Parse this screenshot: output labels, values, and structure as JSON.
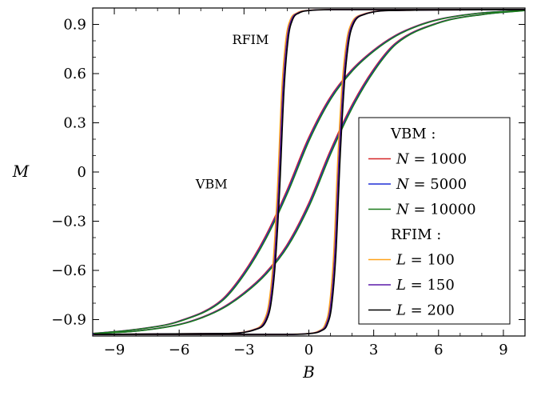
{
  "chart_data": {
    "type": "line",
    "xlabel": "B",
    "ylabel": "M",
    "xlim": [
      -10,
      10
    ],
    "ylim": [
      -1,
      1
    ],
    "xticks": [
      -9,
      -6,
      -3,
      0,
      3,
      6,
      9
    ],
    "xtick_labels": [
      "−9",
      "−6",
      "−3",
      "0",
      "3",
      "6",
      "9"
    ],
    "yticks": [
      -0.9,
      -0.6,
      -0.3,
      0,
      0.3,
      0.6,
      0.9
    ],
    "ytick_labels": [
      "−0.9",
      "−0.6",
      "−0.3",
      "0",
      "0.3",
      "0.6",
      "0.9"
    ],
    "grid": false,
    "legend_placement": "right",
    "annotations": [
      {
        "text": "RFIM",
        "x": -2.7,
        "y": 0.78
      },
      {
        "text": "VBM",
        "x": -4.5,
        "y": -0.1
      }
    ],
    "legend": {
      "groups": [
        {
          "title": "VBM :",
          "entries": [
            {
              "label": "N = 1000",
              "var": "N",
              "value": "1000",
              "color": "#d62728"
            },
            {
              "label": "N = 5000",
              "var": "N",
              "value": "5000",
              "color": "#1f2fd6"
            },
            {
              "label": "N = 10000",
              "var": "N",
              "value": "10000",
              "color": "#1a7a1a"
            }
          ]
        },
        {
          "title": "RFIM :",
          "entries": [
            {
              "label": "L = 100",
              "var": "L",
              "value": "100",
              "color": "#ffa31a"
            },
            {
              "label": "L = 150",
              "var": "L",
              "value": "150",
              "color": "#5b1aa8"
            },
            {
              "label": "L = 200",
              "var": "L",
              "value": "200",
              "color": "#000000"
            }
          ]
        }
      ]
    },
    "series": [
      {
        "name": "N = 1000",
        "group": "VBM",
        "color": "#d62728",
        "upper_branch": {
          "x": [
            -10,
            -8,
            -6,
            -4,
            -3,
            -2,
            -1,
            0,
            1,
            2,
            3,
            4,
            5,
            6,
            8,
            10
          ],
          "y": [
            -0.985,
            -0.96,
            -0.91,
            -0.78,
            -0.62,
            -0.4,
            -0.12,
            0.2,
            0.45,
            0.62,
            0.74,
            0.83,
            0.89,
            0.93,
            0.97,
            0.985
          ]
        },
        "lower_branch": {
          "x": [
            -10,
            -8,
            -6,
            -5,
            -4,
            -3,
            -2,
            -1,
            0,
            1,
            2,
            3,
            4,
            6,
            8,
            10
          ],
          "y": [
            -0.985,
            -0.97,
            -0.93,
            -0.89,
            -0.83,
            -0.74,
            -0.62,
            -0.45,
            -0.2,
            0.12,
            0.4,
            0.62,
            0.78,
            0.91,
            0.96,
            0.985
          ]
        }
      },
      {
        "name": "N = 5000",
        "group": "VBM",
        "color": "#1f2fd6",
        "upper_branch": {
          "x": [
            -10,
            -8,
            -6,
            -4,
            -3,
            -2,
            -1,
            0,
            1,
            2,
            3,
            4,
            5,
            6,
            8,
            10
          ],
          "y": [
            -0.985,
            -0.96,
            -0.91,
            -0.78,
            -0.62,
            -0.4,
            -0.12,
            0.2,
            0.45,
            0.62,
            0.74,
            0.83,
            0.89,
            0.93,
            0.97,
            0.985
          ]
        },
        "lower_branch": {
          "x": [
            -10,
            -8,
            -6,
            -5,
            -4,
            -3,
            -2,
            -1,
            0,
            1,
            2,
            3,
            4,
            6,
            8,
            10
          ],
          "y": [
            -0.985,
            -0.97,
            -0.93,
            -0.89,
            -0.83,
            -0.74,
            -0.62,
            -0.45,
            -0.2,
            0.12,
            0.4,
            0.62,
            0.78,
            0.91,
            0.96,
            0.985
          ]
        }
      },
      {
        "name": "N = 10000",
        "group": "VBM",
        "color": "#1a7a1a",
        "upper_branch": {
          "x": [
            -10,
            -8,
            -6,
            -4,
            -3,
            -2,
            -1,
            0,
            1,
            2,
            3,
            4,
            5,
            6,
            8,
            10
          ],
          "y": [
            -0.985,
            -0.96,
            -0.91,
            -0.78,
            -0.62,
            -0.4,
            -0.12,
            0.2,
            0.45,
            0.62,
            0.74,
            0.83,
            0.89,
            0.93,
            0.97,
            0.985
          ]
        },
        "lower_branch": {
          "x": [
            -10,
            -8,
            -6,
            -5,
            -4,
            -3,
            -2,
            -1,
            0,
            1,
            2,
            3,
            4,
            6,
            8,
            10
          ],
          "y": [
            -0.985,
            -0.97,
            -0.93,
            -0.89,
            -0.83,
            -0.74,
            -0.62,
            -0.45,
            -0.2,
            0.12,
            0.4,
            0.62,
            0.78,
            0.91,
            0.96,
            0.985
          ]
        }
      },
      {
        "name": "L = 100",
        "group": "RFIM",
        "color": "#ffa31a",
        "upper_branch": {
          "x": [
            -10,
            -4,
            -2.5,
            -2,
            -1.8,
            -1.6,
            -1.4,
            -1.2,
            -1.0,
            -0.8,
            -0.5,
            0,
            1,
            3,
            10
          ],
          "y": [
            -0.99,
            -0.985,
            -0.96,
            -0.9,
            -0.8,
            -0.55,
            -0.1,
            0.5,
            0.82,
            0.93,
            0.97,
            0.985,
            0.99,
            0.99,
            0.99
          ]
        },
        "lower_branch": {
          "x": [
            -10,
            -3,
            -1,
            0,
            0.5,
            0.8,
            1.0,
            1.2,
            1.4,
            1.6,
            1.8,
            2.0,
            2.5,
            4,
            10
          ],
          "y": [
            -0.99,
            -0.99,
            -0.99,
            -0.985,
            -0.97,
            -0.93,
            -0.82,
            -0.5,
            0.1,
            0.55,
            0.8,
            0.9,
            0.96,
            0.985,
            0.99
          ]
        }
      },
      {
        "name": "L = 150",
        "group": "RFIM",
        "color": "#5b1aa8",
        "upper_branch": {
          "x": [
            -10,
            -4,
            -2.5,
            -2,
            -1.8,
            -1.6,
            -1.4,
            -1.2,
            -1.0,
            -0.8,
            -0.5,
            0,
            1,
            3,
            10
          ],
          "y": [
            -0.99,
            -0.985,
            -0.96,
            -0.9,
            -0.8,
            -0.55,
            -0.1,
            0.5,
            0.82,
            0.93,
            0.97,
            0.985,
            0.99,
            0.99,
            0.99
          ]
        },
        "lower_branch": {
          "x": [
            -10,
            -3,
            -1,
            0,
            0.5,
            0.8,
            1.0,
            1.2,
            1.4,
            1.6,
            1.8,
            2.0,
            2.5,
            4,
            10
          ],
          "y": [
            -0.99,
            -0.99,
            -0.99,
            -0.985,
            -0.97,
            -0.93,
            -0.82,
            -0.5,
            0.1,
            0.55,
            0.8,
            0.9,
            0.96,
            0.985,
            0.99
          ]
        }
      },
      {
        "name": "L = 200",
        "group": "RFIM",
        "color": "#000000",
        "upper_branch": {
          "x": [
            -10,
            -4,
            -2.5,
            -2,
            -1.8,
            -1.6,
            -1.4,
            -1.2,
            -1.0,
            -0.8,
            -0.5,
            0,
            1,
            3,
            10
          ],
          "y": [
            -0.99,
            -0.985,
            -0.96,
            -0.9,
            -0.8,
            -0.55,
            -0.1,
            0.5,
            0.82,
            0.93,
            0.97,
            0.985,
            0.99,
            0.99,
            0.99
          ]
        },
        "lower_branch": {
          "x": [
            -10,
            -3,
            -1,
            0,
            0.5,
            0.8,
            1.0,
            1.2,
            1.4,
            1.6,
            1.8,
            2.0,
            2.5,
            4,
            10
          ],
          "y": [
            -0.99,
            -0.99,
            -0.99,
            -0.985,
            -0.97,
            -0.93,
            -0.82,
            -0.5,
            0.1,
            0.55,
            0.8,
            0.9,
            0.96,
            0.985,
            0.99
          ]
        }
      }
    ]
  }
}
